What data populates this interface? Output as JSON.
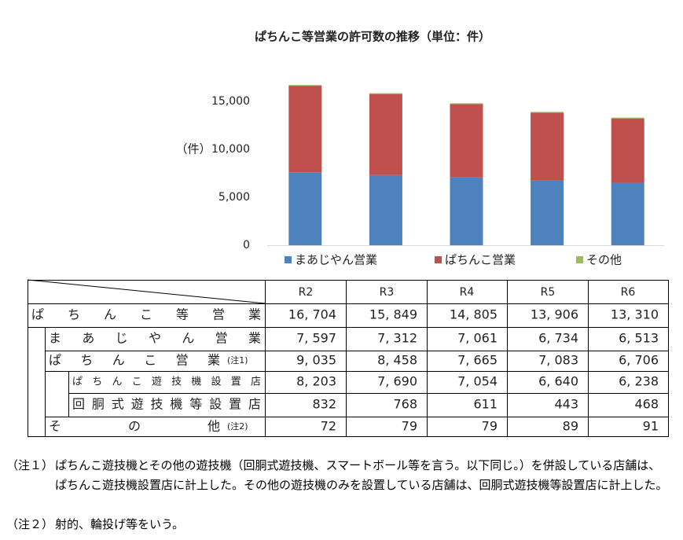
{
  "chart_data": {
    "type": "bar",
    "stacked": true,
    "title": "ぱちんこ等営業の許可数の推移（単位：件）",
    "y_label": "（件）",
    "series": [
      {
        "name": "まあじやん営業",
        "color": "#4f81bd",
        "values": [
          7597,
          7312,
          7061,
          6734,
          6513
        ]
      },
      {
        "name": "ぱちんこ営業",
        "color": "#c0504d",
        "values": [
          9035,
          8458,
          7665,
          7083,
          6706
        ]
      },
      {
        "name": "その他",
        "color": "#9bbb59",
        "values": [
          72,
          79,
          79,
          89,
          91
        ]
      }
    ],
    "ylim": [
      0,
      20000
    ],
    "yticks": [
      0,
      {
        "value": 5000,
        "label": "5,000"
      },
      {
        "value": 10000,
        "label": "10,000"
      },
      {
        "value": 15000,
        "label": "15,000"
      }
    ],
    "grid": false
  },
  "table": {
    "header": [
      "R2",
      "R3",
      "R4",
      "R5",
      "R6"
    ],
    "rows": [
      {
        "label": "ぱちんこ等営業",
        "cells": [
          "16, 704",
          "15, 849",
          "14, 805",
          "13, 906",
          "13, 310"
        ]
      },
      {
        "label": "まあじやん営業",
        "cells": [
          "7, 597",
          "7, 312",
          "7, 061",
          "6, 734",
          "6, 513"
        ]
      },
      {
        "label": "ぱちんこ営業",
        "note": "(注1)",
        "cells": [
          "9, 035",
          "8, 458",
          "7, 665",
          "7, 083",
          "6, 706"
        ]
      },
      {
        "label": "ぱちんこ遊技機設置店",
        "cells": [
          "8, 203",
          "7, 690",
          "7, 054",
          "6, 640",
          "6, 238"
        ]
      },
      {
        "label": "回胴式遊技機等設置店",
        "cells": [
          "832",
          "768",
          "611",
          "443",
          "468"
        ]
      },
      {
        "label": "その他",
        "note": "(注2)",
        "cells": [
          "72",
          "79",
          "79",
          "89",
          "91"
        ]
      }
    ]
  },
  "notes": [
    {
      "mark": "（注１）",
      "text": "ぱちんこ遊技機とその他の遊技機（回胴式遊技機、スマートボール等を言う。以下同じ。）を併設している店舗は、ぱちんこ遊技機設置店に計上した。その他の遊技機のみを設置している店舗は、回胴式遊技機等設置店に計上した。"
    },
    {
      "mark": "（注２）",
      "text": "射的、輪投げ等をいう。"
    }
  ]
}
